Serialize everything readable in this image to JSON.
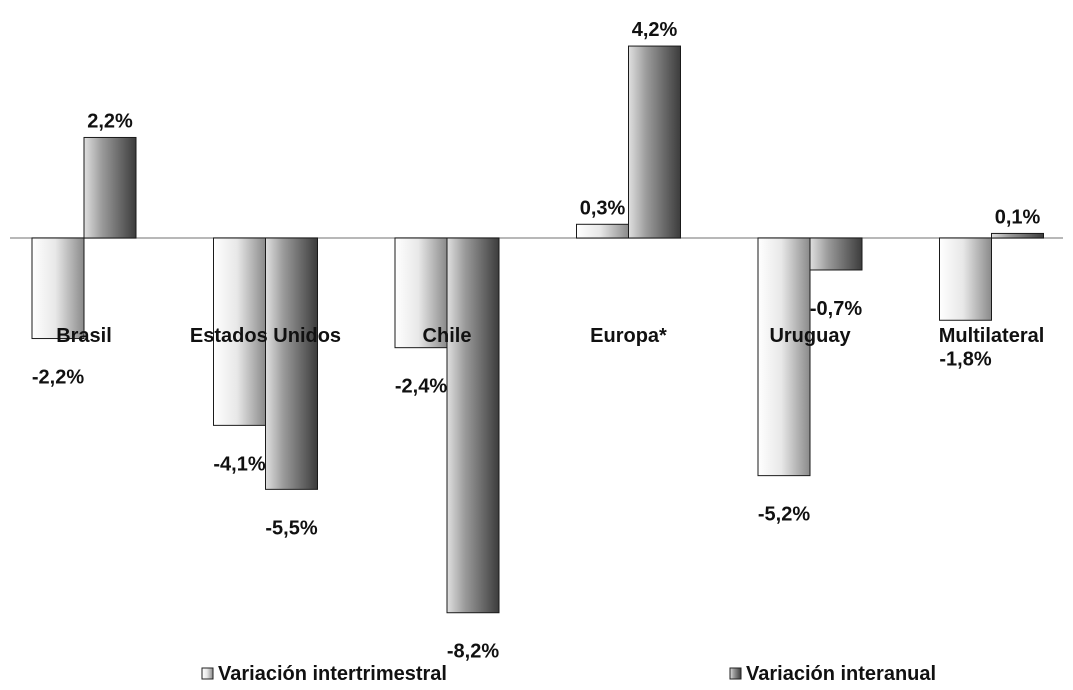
{
  "chart_data": {
    "type": "bar",
    "title": "",
    "xlabel": "",
    "ylabel": "",
    "categories": [
      "Brasil",
      "Estados Unidos",
      "Chile",
      "Europa*",
      "Uruguay",
      "Multilateral"
    ],
    "series": [
      {
        "name": "Variación intertrimestral",
        "values": [
          -2.2,
          -4.1,
          -2.4,
          0.3,
          -5.2,
          -1.8
        ],
        "labels": [
          "-2,2%",
          "-4,1%",
          "-2,4%",
          "0,3%",
          "-5,2%",
          "-1,8%"
        ],
        "color": "#e6e6e6"
      },
      {
        "name": "Variación interanual",
        "values": [
          2.2,
          -5.5,
          -8.2,
          4.2,
          -0.7,
          0.1
        ],
        "labels": [
          "2,2%",
          "-5,5%",
          "-8,2%",
          "4,2%",
          "-0,7%",
          "0,1%"
        ],
        "color": "#808080"
      }
    ],
    "ylim": [
      -9,
      5
    ],
    "grid": false,
    "legend": "bottom",
    "value_label_unit": "%",
    "colors": {
      "axis": "#a0a0a0",
      "light_bar": "#e6e6e6",
      "dark_bar": "#808080",
      "text": "#111111"
    }
  }
}
